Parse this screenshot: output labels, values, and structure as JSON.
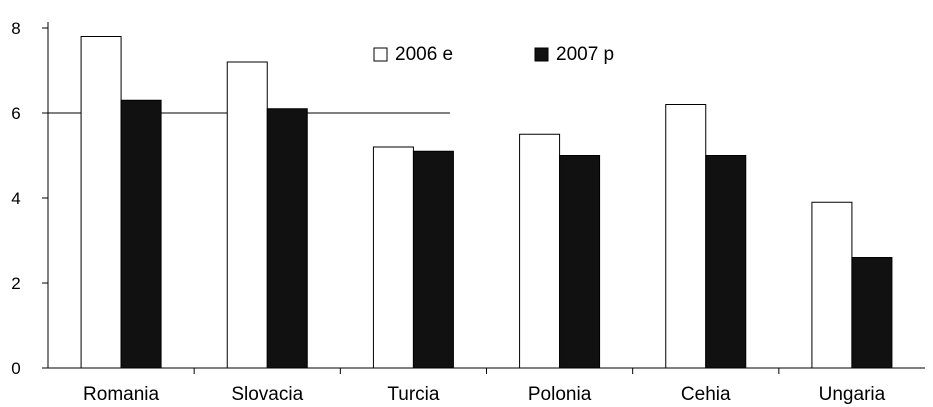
{
  "chart_data": {
    "type": "bar",
    "title": "",
    "xlabel": "",
    "ylabel": "",
    "categories": [
      "Romania",
      "Slovacia",
      "Turcia",
      "Polonia",
      "Cehia",
      "Ungaria"
    ],
    "series": [
      {
        "name": "2006 e",
        "values": [
          7.8,
          7.2,
          5.2,
          5.5,
          6.2,
          3.9
        ],
        "color": "#ffffff"
      },
      {
        "name": "2007 p",
        "values": [
          6.3,
          6.1,
          5.1,
          5.0,
          5.0,
          2.6
        ],
        "color": "#111111"
      }
    ],
    "ylim": [
      0,
      8
    ],
    "yticks": [
      0,
      2,
      4,
      6,
      8
    ],
    "grid": false,
    "legend_position": "top-center"
  }
}
